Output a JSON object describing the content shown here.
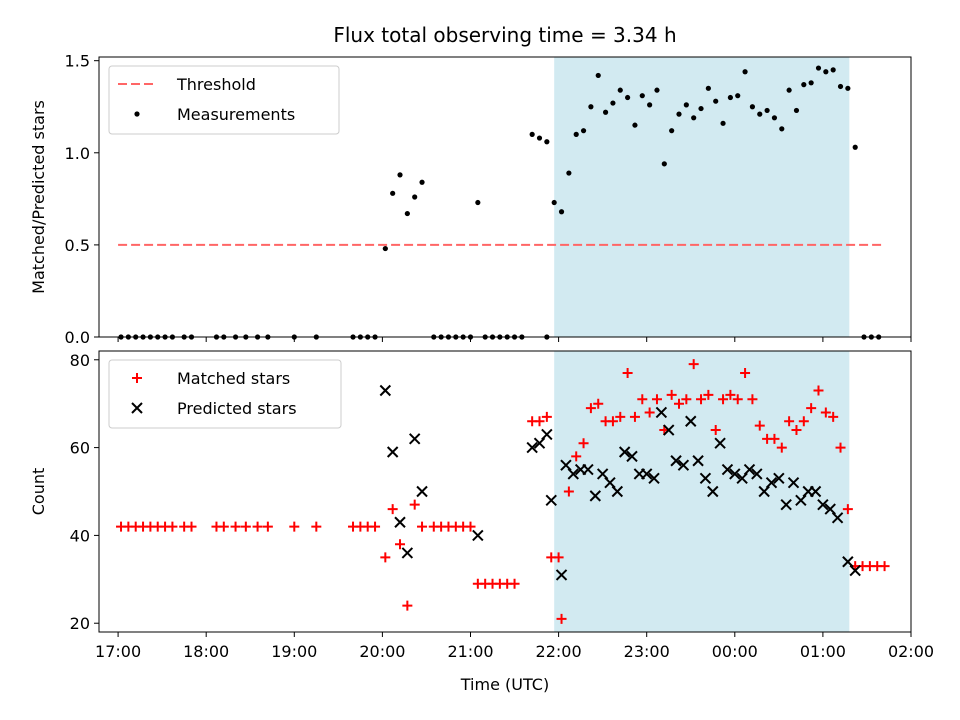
{
  "figure": {
    "title": "Flux total observing time = 3.34 h",
    "xlabel": "Time (UTC)"
  },
  "chart_data": [
    {
      "type": "scatter",
      "panel": "top",
      "ylabel": "Matched/Predicted stars",
      "xlim": [
        "16:47",
        "02:00"
      ],
      "ylim": [
        0,
        1.52
      ],
      "x_ticks": [
        "17:00",
        "18:00",
        "19:00",
        "20:00",
        "21:00",
        "22:00",
        "23:00",
        "00:00",
        "01:00",
        "02:00"
      ],
      "y_ticks": [
        "0.0",
        "0.5",
        "1.0",
        "1.5"
      ],
      "highlight_span": {
        "start": "21:57",
        "end": "01:18",
        "color": "#add8e6"
      },
      "legend_position": "upper-left",
      "threshold": {
        "name": "Threshold",
        "value": 0.5,
        "x_start": "17:00",
        "x_end": "01:40",
        "color": "#ff6666",
        "style": "dashed"
      },
      "series": [
        {
          "name": "Measurements",
          "color": "#000000",
          "marker": "dot",
          "points": [
            [
              "17:02",
              0
            ],
            [
              "17:07",
              0
            ],
            [
              "17:12",
              0
            ],
            [
              "17:17",
              0
            ],
            [
              "17:22",
              0
            ],
            [
              "17:27",
              0
            ],
            [
              "17:32",
              0
            ],
            [
              "17:37",
              0
            ],
            [
              "17:45",
              0
            ],
            [
              "17:50",
              0
            ],
            [
              "18:07",
              0
            ],
            [
              "18:12",
              0
            ],
            [
              "18:20",
              0
            ],
            [
              "18:27",
              0
            ],
            [
              "18:35",
              0
            ],
            [
              "18:42",
              0
            ],
            [
              "19:00",
              0
            ],
            [
              "19:15",
              0
            ],
            [
              "19:40",
              0
            ],
            [
              "19:45",
              0
            ],
            [
              "19:50",
              0
            ],
            [
              "19:55",
              0
            ],
            [
              "20:02",
              0.48
            ],
            [
              "20:07",
              0.78
            ],
            [
              "20:12",
              0.88
            ],
            [
              "20:17",
              0.67
            ],
            [
              "20:22",
              0.76
            ],
            [
              "20:27",
              0.84
            ],
            [
              "20:35",
              0
            ],
            [
              "20:40",
              0
            ],
            [
              "20:45",
              0
            ],
            [
              "20:50",
              0
            ],
            [
              "20:55",
              0
            ],
            [
              "21:00",
              0
            ],
            [
              "21:05",
              0.73
            ],
            [
              "21:10",
              0
            ],
            [
              "21:15",
              0
            ],
            [
              "21:20",
              0
            ],
            [
              "21:25",
              0
            ],
            [
              "21:30",
              0
            ],
            [
              "21:35",
              0
            ],
            [
              "21:42",
              1.1
            ],
            [
              "21:47",
              1.08
            ],
            [
              "21:52",
              1.06
            ],
            [
              "21:57",
              0.73
            ],
            [
              "21:52",
              0
            ],
            [
              "22:02",
              0.68
            ],
            [
              "22:07",
              0.89
            ],
            [
              "22:12",
              1.1
            ],
            [
              "22:17",
              1.12
            ],
            [
              "22:22",
              1.25
            ],
            [
              "22:27",
              1.42
            ],
            [
              "22:32",
              1.22
            ],
            [
              "22:37",
              1.27
            ],
            [
              "22:42",
              1.34
            ],
            [
              "22:47",
              1.3
            ],
            [
              "22:52",
              1.15
            ],
            [
              "22:57",
              1.31
            ],
            [
              "23:02",
              1.26
            ],
            [
              "23:07",
              1.34
            ],
            [
              "23:12",
              0.94
            ],
            [
              "23:17",
              1.12
            ],
            [
              "23:22",
              1.21
            ],
            [
              "23:27",
              1.26
            ],
            [
              "23:32",
              1.19
            ],
            [
              "23:37",
              1.24
            ],
            [
              "23:42",
              1.35
            ],
            [
              "23:47",
              1.28
            ],
            [
              "23:52",
              1.16
            ],
            [
              "23:57",
              1.3
            ],
            [
              "00:02",
              1.31
            ],
            [
              "00:07",
              1.44
            ],
            [
              "00:12",
              1.25
            ],
            [
              "00:17",
              1.21
            ],
            [
              "00:22",
              1.23
            ],
            [
              "00:27",
              1.19
            ],
            [
              "00:32",
              1.13
            ],
            [
              "00:37",
              1.34
            ],
            [
              "00:42",
              1.23
            ],
            [
              "00:47",
              1.37
            ],
            [
              "00:52",
              1.38
            ],
            [
              "00:57",
              1.46
            ],
            [
              "01:02",
              1.44
            ],
            [
              "01:07",
              1.45
            ],
            [
              "01:12",
              1.36
            ],
            [
              "01:17",
              1.35
            ],
            [
              "01:22",
              1.03
            ],
            [
              "01:28",
              0
            ],
            [
              "01:33",
              0
            ],
            [
              "01:38",
              0
            ]
          ]
        }
      ]
    },
    {
      "type": "scatter",
      "panel": "bottom",
      "ylabel": "Count",
      "xlim": [
        "16:47",
        "02:00"
      ],
      "ylim": [
        18,
        82
      ],
      "x_ticks": [
        "17:00",
        "18:00",
        "19:00",
        "20:00",
        "21:00",
        "22:00",
        "23:00",
        "00:00",
        "01:00",
        "02:00"
      ],
      "y_ticks": [
        "20",
        "40",
        "60",
        "80"
      ],
      "highlight_span": {
        "start": "21:57",
        "end": "01:18",
        "color": "#add8e6"
      },
      "legend_position": "upper-left",
      "series": [
        {
          "name": "Matched stars",
          "color": "#ff0000",
          "marker": "plus",
          "points": [
            [
              "17:02",
              42
            ],
            [
              "17:07",
              42
            ],
            [
              "17:12",
              42
            ],
            [
              "17:17",
              42
            ],
            [
              "17:22",
              42
            ],
            [
              "17:27",
              42
            ],
            [
              "17:32",
              42
            ],
            [
              "17:37",
              42
            ],
            [
              "17:45",
              42
            ],
            [
              "17:50",
              42
            ],
            [
              "18:07",
              42
            ],
            [
              "18:12",
              42
            ],
            [
              "18:20",
              42
            ],
            [
              "18:27",
              42
            ],
            [
              "18:35",
              42
            ],
            [
              "18:42",
              42
            ],
            [
              "19:00",
              42
            ],
            [
              "19:15",
              42
            ],
            [
              "19:40",
              42
            ],
            [
              "19:45",
              42
            ],
            [
              "19:50",
              42
            ],
            [
              "19:55",
              42
            ],
            [
              "20:02",
              35
            ],
            [
              "20:07",
              46
            ],
            [
              "20:12",
              38
            ],
            [
              "20:17",
              24
            ],
            [
              "20:22",
              47
            ],
            [
              "20:27",
              42
            ],
            [
              "20:35",
              42
            ],
            [
              "20:40",
              42
            ],
            [
              "20:45",
              42
            ],
            [
              "20:50",
              42
            ],
            [
              "20:55",
              42
            ],
            [
              "21:00",
              42
            ],
            [
              "21:05",
              29
            ],
            [
              "21:10",
              29
            ],
            [
              "21:15",
              29
            ],
            [
              "21:20",
              29
            ],
            [
              "21:25",
              29
            ],
            [
              "21:30",
              29
            ],
            [
              "21:42",
              66
            ],
            [
              "21:47",
              66
            ],
            [
              "21:52",
              67
            ],
            [
              "21:55",
              35
            ],
            [
              "22:00",
              35
            ],
            [
              "22:02",
              21
            ],
            [
              "22:07",
              50
            ],
            [
              "22:12",
              58
            ],
            [
              "22:17",
              61
            ],
            [
              "22:22",
              69
            ],
            [
              "22:27",
              70
            ],
            [
              "22:32",
              66
            ],
            [
              "22:37",
              66
            ],
            [
              "22:42",
              67
            ],
            [
              "22:47",
              77
            ],
            [
              "22:52",
              67
            ],
            [
              "22:57",
              71
            ],
            [
              "23:02",
              68
            ],
            [
              "23:07",
              71
            ],
            [
              "23:12",
              64
            ],
            [
              "23:17",
              72
            ],
            [
              "23:22",
              70
            ],
            [
              "23:27",
              71
            ],
            [
              "23:32",
              79
            ],
            [
              "23:37",
              71
            ],
            [
              "23:42",
              72
            ],
            [
              "23:47",
              64
            ],
            [
              "23:52",
              71
            ],
            [
              "23:57",
              72
            ],
            [
              "00:02",
              71
            ],
            [
              "00:07",
              77
            ],
            [
              "00:12",
              71
            ],
            [
              "00:17",
              65
            ],
            [
              "00:22",
              62
            ],
            [
              "00:27",
              62
            ],
            [
              "00:32",
              60
            ],
            [
              "00:37",
              66
            ],
            [
              "00:42",
              64
            ],
            [
              "00:47",
              66
            ],
            [
              "00:52",
              69
            ],
            [
              "00:57",
              73
            ],
            [
              "01:02",
              68
            ],
            [
              "01:07",
              67
            ],
            [
              "01:12",
              60
            ],
            [
              "01:17",
              46
            ],
            [
              "01:22",
              33
            ],
            [
              "01:27",
              33
            ],
            [
              "01:32",
              33
            ],
            [
              "01:37",
              33
            ],
            [
              "01:42",
              33
            ]
          ]
        },
        {
          "name": "Predicted stars",
          "color": "#000000",
          "marker": "x",
          "points": [
            [
              "20:02",
              73
            ],
            [
              "20:07",
              59
            ],
            [
              "20:12",
              43
            ],
            [
              "20:17",
              36
            ],
            [
              "20:22",
              62
            ],
            [
              "20:27",
              50
            ],
            [
              "21:05",
              40
            ],
            [
              "21:42",
              60
            ],
            [
              "21:47",
              61
            ],
            [
              "21:52",
              63
            ],
            [
              "21:55",
              48
            ],
            [
              "22:02",
              31
            ],
            [
              "22:05",
              56
            ],
            [
              "22:10",
              54
            ],
            [
              "22:15",
              55
            ],
            [
              "22:20",
              55
            ],
            [
              "22:25",
              49
            ],
            [
              "22:30",
              54
            ],
            [
              "22:35",
              52
            ],
            [
              "22:40",
              50
            ],
            [
              "22:45",
              59
            ],
            [
              "22:50",
              58
            ],
            [
              "22:55",
              54
            ],
            [
              "23:00",
              54
            ],
            [
              "23:05",
              53
            ],
            [
              "23:10",
              68
            ],
            [
              "23:15",
              64
            ],
            [
              "23:20",
              57
            ],
            [
              "23:25",
              56
            ],
            [
              "23:30",
              66
            ],
            [
              "23:35",
              57
            ],
            [
              "23:40",
              53
            ],
            [
              "23:45",
              50
            ],
            [
              "23:50",
              61
            ],
            [
              "23:55",
              55
            ],
            [
              "00:00",
              54
            ],
            [
              "00:05",
              53
            ],
            [
              "00:10",
              55
            ],
            [
              "00:15",
              54
            ],
            [
              "00:20",
              50
            ],
            [
              "00:25",
              52
            ],
            [
              "00:30",
              53
            ],
            [
              "00:35",
              47
            ],
            [
              "00:40",
              52
            ],
            [
              "00:45",
              48
            ],
            [
              "00:50",
              50
            ],
            [
              "00:55",
              50
            ],
            [
              "01:00",
              47
            ],
            [
              "01:05",
              46
            ],
            [
              "01:10",
              44
            ],
            [
              "01:17",
              34
            ],
            [
              "01:22",
              32
            ]
          ]
        }
      ]
    }
  ]
}
